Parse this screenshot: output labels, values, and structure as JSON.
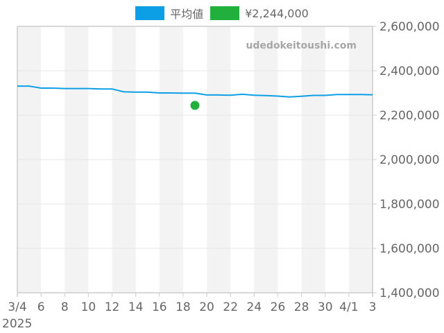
{
  "legend": {
    "items": [
      {
        "label": "平均値",
        "color": "#0d9fe6"
      },
      {
        "label": "¥2,244,000",
        "color": "#22b03c"
      }
    ]
  },
  "watermark": "udedokeitoushi.com",
  "colors": {
    "line": "#0d9fe6",
    "point": "#22b03c",
    "band": "#f3f3f3",
    "grid": "#e4e4e4",
    "axis": "#cccccc"
  },
  "chart_data": {
    "type": "line",
    "title": "",
    "xlabel": "",
    "ylabel": "",
    "ylim": [
      1400000,
      2600000
    ],
    "yticks": [
      1400000,
      1600000,
      1800000,
      2000000,
      2200000,
      2400000,
      2600000
    ],
    "ytick_labels": [
      "1,400,000",
      "1,600,000",
      "1,800,000",
      "2,000,000",
      "2,200,000",
      "2,400,000",
      "2,600,000"
    ],
    "xtick_labels": [
      "3/4",
      "6",
      "8",
      "10",
      "12",
      "14",
      "16",
      "18",
      "20",
      "22",
      "24",
      "26",
      "28",
      "30",
      "4/1",
      "3"
    ],
    "xtick_year": "2025",
    "x_days": 30,
    "grid": true,
    "legend_position": "top",
    "series": [
      {
        "name": "平均値",
        "x": [
          "3/4",
          "3/5",
          "3/6",
          "3/7",
          "3/8",
          "3/9",
          "3/10",
          "3/11",
          "3/12",
          "3/13",
          "3/14",
          "3/15",
          "3/16",
          "3/17",
          "3/18",
          "3/19",
          "3/20",
          "3/21",
          "3/22",
          "3/23",
          "3/24",
          "3/25",
          "3/26",
          "3/27",
          "3/28",
          "3/29",
          "3/30",
          "3/31",
          "4/1",
          "4/2",
          "4/3"
        ],
        "values": [
          2331000,
          2331000,
          2322000,
          2322000,
          2320000,
          2320000,
          2320000,
          2318000,
          2318000,
          2305000,
          2304000,
          2304000,
          2300000,
          2300000,
          2299000,
          2299000,
          2291000,
          2291000,
          2290000,
          2294000,
          2290000,
          2288000,
          2286000,
          2282000,
          2285000,
          2289000,
          2289000,
          2293000,
          2293000,
          2293000,
          2292000
        ]
      },
      {
        "name": "¥2,244,000",
        "type": "scatter",
        "x": [
          "3/19"
        ],
        "values": [
          2244000
        ]
      }
    ]
  }
}
